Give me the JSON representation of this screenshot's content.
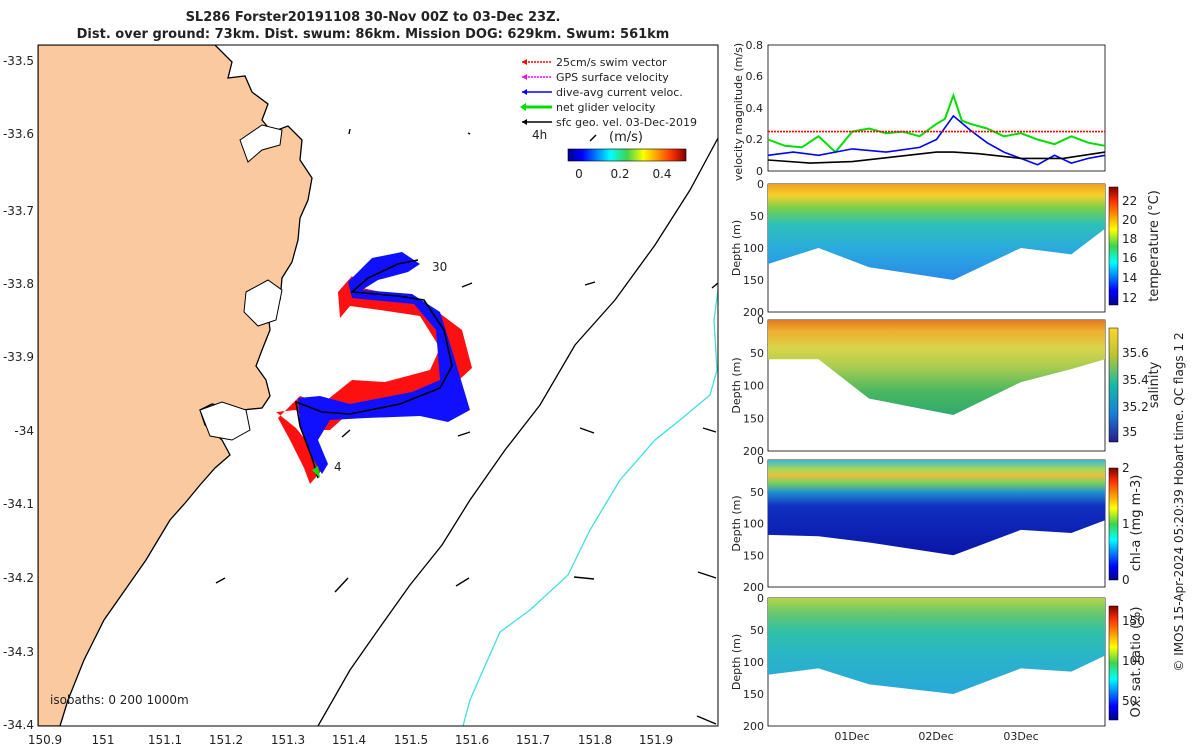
{
  "title": {
    "line1": "SL286 Forster20191108 30-Nov 00Z to 03-Dec 23Z.",
    "line2": "Dist. over ground: 73km. Dist. swum: 86km. Mission DOG: 629km. Swum: 561km"
  },
  "map": {
    "lon_ticks": [
      "150.9",
      "151",
      "151.1",
      "151.2",
      "151.3",
      "151.4",
      "151.5",
      "151.6",
      "151.7",
      "151.8",
      "151.9"
    ],
    "lat_ticks": [
      "-33.5",
      "-33.6",
      "-33.7",
      "-33.8",
      "-33.9",
      "-34",
      "-34.1",
      "-34.2",
      "-34.3",
      "-34.4"
    ],
    "legend": [
      {
        "label": "25cm/s swim vector",
        "color": "#ff0000"
      },
      {
        "label": "GPS surface velocity",
        "color": "#ff00ff"
      },
      {
        "label": "dive-avg current veloc.",
        "color": "#0000ff"
      },
      {
        "label": "net glider velocity",
        "color": "#00dd00"
      },
      {
        "label": "sfc geo. vel. 03-Dec-2019",
        "color": "#000000"
      }
    ],
    "vector_scale_label": "4h",
    "colorbar": {
      "unit": "(m/s)",
      "ticks": [
        "0",
        "0.2",
        "0.4"
      ]
    },
    "track_labels": {
      "start": "4",
      "end": "30"
    },
    "isobaths_label": "isobaths: 0   200  1000m",
    "colors": {
      "land": "#fac9a0",
      "coast": "#000000",
      "isobath_200": "#000000",
      "isobath_1000": "#3fe0e0"
    }
  },
  "chart_data": [
    {
      "type": "line",
      "ylabel": "velocity magnitude (m/s)",
      "ylim": [
        0,
        0.8
      ],
      "yticks": [
        "0",
        "0.2",
        "0.4",
        "0.6",
        "0.8"
      ],
      "x_range_days": [
        0,
        4
      ],
      "series": [
        {
          "color": "#00dd00",
          "x": [
            0,
            0.2,
            0.4,
            0.6,
            0.8,
            1.0,
            1.2,
            1.4,
            1.6,
            1.8,
            2.0,
            2.1,
            2.2,
            2.3,
            2.4,
            2.6,
            2.8,
            3.0,
            3.2,
            3.4,
            3.6,
            3.8,
            4.0
          ],
          "values": [
            0.2,
            0.16,
            0.15,
            0.22,
            0.12,
            0.25,
            0.27,
            0.24,
            0.25,
            0.22,
            0.3,
            0.33,
            0.48,
            0.32,
            0.3,
            0.27,
            0.22,
            0.24,
            0.2,
            0.17,
            0.22,
            0.18,
            0.16
          ]
        },
        {
          "color": "#0000ff",
          "x": [
            0,
            0.3,
            0.6,
            1.0,
            1.4,
            1.8,
            2.0,
            2.2,
            2.4,
            2.6,
            2.8,
            3.0,
            3.2,
            3.4,
            3.6,
            3.8,
            4.0
          ],
          "values": [
            0.1,
            0.12,
            0.1,
            0.14,
            0.12,
            0.15,
            0.2,
            0.35,
            0.26,
            0.18,
            0.12,
            0.08,
            0.04,
            0.1,
            0.05,
            0.08,
            0.1
          ]
        },
        {
          "color": "#000000",
          "x": [
            0,
            0.5,
            1.0,
            1.5,
            2.0,
            2.2,
            2.5,
            3.0,
            3.5,
            4.0
          ],
          "values": [
            0.07,
            0.05,
            0.06,
            0.09,
            0.12,
            0.12,
            0.11,
            0.08,
            0.08,
            0.12
          ]
        },
        {
          "color": "#ff0000",
          "x": [
            0,
            4
          ],
          "values": [
            0.25,
            0.25
          ]
        }
      ]
    },
    {
      "type": "heatmap",
      "ylabel": "Depth (m)",
      "yticks": [
        "0",
        "50",
        "100",
        "150",
        "200"
      ],
      "variable": "temperature (°C)",
      "colorbar_ticks": [
        "12",
        "14",
        "16",
        "18",
        "20",
        "22"
      ],
      "bottom_depth": [
        {
          "x": 0,
          "d": 125
        },
        {
          "x": 0.6,
          "d": 100
        },
        {
          "x": 1.2,
          "d": 130
        },
        {
          "x": 2.2,
          "d": 150
        },
        {
          "x": 3.0,
          "d": 100
        },
        {
          "x": 3.6,
          "d": 110
        },
        {
          "x": 4.0,
          "d": 70
        }
      ]
    },
    {
      "type": "heatmap",
      "ylabel": "Depth (m)",
      "yticks": [
        "0",
        "50",
        "100",
        "150",
        "200"
      ],
      "variable": "salinity",
      "colorbar_ticks": [
        "35",
        "35.2",
        "35.4",
        "35.6"
      ],
      "bottom_depth": [
        {
          "x": 0,
          "d": 60
        },
        {
          "x": 0.6,
          "d": 60
        },
        {
          "x": 1.2,
          "d": 120
        },
        {
          "x": 2.2,
          "d": 145
        },
        {
          "x": 3.0,
          "d": 95
        },
        {
          "x": 3.6,
          "d": 75
        },
        {
          "x": 4.0,
          "d": 60
        }
      ]
    },
    {
      "type": "heatmap",
      "ylabel": "Depth (m)",
      "yticks": [
        "0",
        "50",
        "100",
        "150",
        "200"
      ],
      "variable": "chl-a (mg m-3)",
      "colorbar_ticks": [
        "0",
        "1",
        "2"
      ],
      "bottom_depth": [
        {
          "x": 0,
          "d": 118
        },
        {
          "x": 0.6,
          "d": 120
        },
        {
          "x": 1.2,
          "d": 130
        },
        {
          "x": 2.2,
          "d": 150
        },
        {
          "x": 3.0,
          "d": 110
        },
        {
          "x": 3.6,
          "d": 115
        },
        {
          "x": 4.0,
          "d": 95
        }
      ]
    },
    {
      "type": "heatmap",
      "ylabel": "Depth (m)",
      "yticks": [
        "0",
        "50",
        "100",
        "150",
        "200"
      ],
      "xticks": [
        "01Dec",
        "02Dec",
        "03Dec"
      ],
      "variable": "Ox. sat. ratio (%)",
      "colorbar_ticks": [
        "50",
        "100",
        "150"
      ],
      "bottom_depth": [
        {
          "x": 0,
          "d": 120
        },
        {
          "x": 0.6,
          "d": 110
        },
        {
          "x": 1.2,
          "d": 135
        },
        {
          "x": 2.2,
          "d": 150
        },
        {
          "x": 3.0,
          "d": 110
        },
        {
          "x": 3.6,
          "d": 115
        },
        {
          "x": 4.0,
          "d": 90
        }
      ]
    }
  ],
  "side_note": "© IMOS 15-Apr-2024 05:20:39 Hobart time. QC flags 1  2"
}
